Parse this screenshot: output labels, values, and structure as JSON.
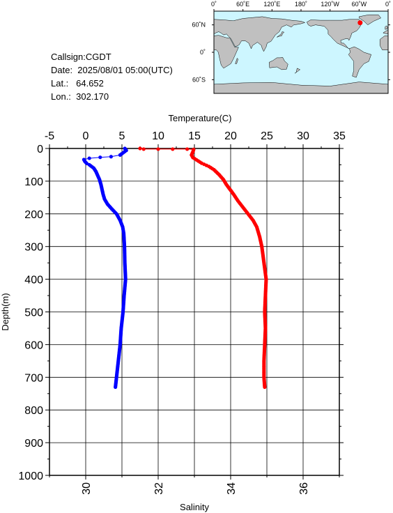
{
  "info": {
    "callsign": "Callsign:CGDT",
    "date": "Date:  2025/08/01 05:00(UTC)",
    "lat": "Lat.:   64.652",
    "lon": "Lon.:  302.170"
  },
  "map": {
    "top_labels": [
      "0˚",
      "60˚E",
      "120˚E",
      "180˚",
      "120˚W",
      "60˚W",
      "0˚"
    ],
    "side_labels": [
      "60˚N",
      "0˚",
      "60˚S"
    ],
    "ocean_color": "#cdf6ff",
    "land_color": "#c0c0c0",
    "marker_color": "#ff0000",
    "marker_lon": 302.17,
    "marker_lat": 64.652
  },
  "chart_data": {
    "type": "scatter",
    "ylabel": "Depth(m)",
    "ylim": [
      0,
      1000
    ],
    "yticks": [
      0,
      100,
      200,
      300,
      400,
      500,
      600,
      700,
      800,
      900,
      1000
    ],
    "top_axis": {
      "label": "Temperature(C)",
      "lim": [
        -5,
        35
      ],
      "ticks": [
        -5,
        0,
        5,
        10,
        15,
        20,
        25,
        30,
        35
      ]
    },
    "bottom_axis": {
      "label": "Salinity",
      "lim": [
        29,
        37
      ],
      "ticks": [
        30,
        32,
        34,
        36
      ]
    },
    "grid": true,
    "series": [
      {
        "axis": "bottom",
        "color": "#0000ff",
        "points": [
          [
            31.08,
            0
          ],
          [
            31.12,
            6
          ],
          [
            30.95,
            20
          ],
          [
            30.7,
            25
          ],
          [
            30.4,
            27
          ],
          [
            30.1,
            30
          ],
          [
            29.95,
            34
          ],
          [
            29.98,
            40
          ],
          [
            30.03,
            46
          ],
          [
            30.1,
            50
          ],
          [
            30.22,
            60
          ],
          [
            30.28,
            70
          ],
          [
            30.32,
            80
          ],
          [
            30.38,
            95
          ],
          [
            30.42,
            110
          ],
          [
            30.45,
            125
          ],
          [
            30.48,
            140
          ],
          [
            30.52,
            155
          ],
          [
            30.6,
            170
          ],
          [
            30.72,
            185
          ],
          [
            30.85,
            200
          ],
          [
            30.95,
            220
          ],
          [
            31.02,
            240
          ],
          [
            31.05,
            260
          ],
          [
            31.07,
            300
          ],
          [
            31.08,
            350
          ],
          [
            31.1,
            400
          ],
          [
            31.06,
            450
          ],
          [
            31.03,
            500
          ],
          [
            30.98,
            550
          ],
          [
            30.95,
            600
          ],
          [
            30.9,
            650
          ],
          [
            30.85,
            700
          ],
          [
            30.82,
            730
          ]
        ]
      },
      {
        "axis": "top",
        "color": "#ff0000",
        "points": [
          [
            7.5,
            0
          ],
          [
            8.0,
            2
          ],
          [
            10.0,
            2
          ],
          [
            12.0,
            2
          ],
          [
            14.0,
            2
          ],
          [
            14.9,
            3
          ],
          [
            14.8,
            10
          ],
          [
            14.6,
            20
          ],
          [
            14.8,
            28
          ],
          [
            15.3,
            35
          ],
          [
            16.0,
            45
          ],
          [
            17.0,
            55
          ],
          [
            17.7,
            65
          ],
          [
            18.4,
            80
          ],
          [
            19.0,
            95
          ],
          [
            19.4,
            110
          ],
          [
            19.9,
            125
          ],
          [
            20.4,
            140
          ],
          [
            21.0,
            160
          ],
          [
            21.7,
            180
          ],
          [
            22.4,
            200
          ],
          [
            23.1,
            220
          ],
          [
            23.6,
            240
          ],
          [
            24.0,
            270
          ],
          [
            24.3,
            300
          ],
          [
            24.6,
            350
          ],
          [
            24.9,
            400
          ],
          [
            24.8,
            450
          ],
          [
            24.7,
            500
          ],
          [
            24.8,
            550
          ],
          [
            24.7,
            600
          ],
          [
            24.6,
            650
          ],
          [
            24.6,
            700
          ],
          [
            24.7,
            730
          ]
        ]
      }
    ]
  }
}
